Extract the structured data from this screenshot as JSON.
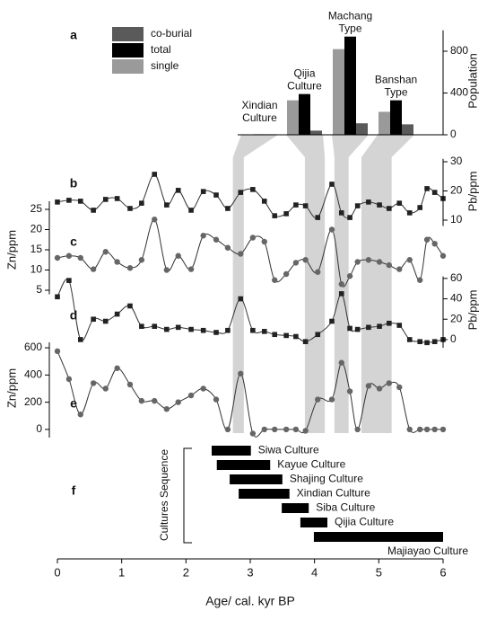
{
  "chart_data": [
    {
      "type": "bar",
      "label": "a",
      "ylabel": "Population",
      "categories": [
        "Xindian Culture",
        "Qijia Culture",
        "Machang Type",
        "Banshan Type"
      ],
      "age_ranges": [
        [
          2.73,
          2.9
        ],
        [
          3.85,
          4.16
        ],
        [
          4.31,
          4.53
        ],
        [
          4.73,
          5.2
        ]
      ],
      "series": [
        {
          "name": "co-burial",
          "color": "#5a5a5a",
          "values": [
            5,
            40,
            110,
            100
          ]
        },
        {
          "name": "total",
          "color": "#000000",
          "values": [
            5,
            390,
            940,
            330
          ]
        },
        {
          "name": "single",
          "color": "#9a9a9a",
          "values": [
            0,
            330,
            820,
            220
          ]
        }
      ],
      "ylim": [
        0,
        1000
      ],
      "yticks": [
        0,
        400,
        800
      ],
      "axis_side": "right",
      "legend": "top-left"
    },
    {
      "type": "line",
      "label": "b",
      "ylabel": "Pb/ppm",
      "marker": "square",
      "axis_side": "right",
      "x": [
        0,
        0.18,
        0.36,
        0.56,
        0.75,
        0.93,
        1.13,
        1.31,
        1.51,
        1.7,
        1.88,
        2.08,
        2.27,
        2.47,
        2.65,
        2.85,
        3.04,
        3.22,
        3.38,
        3.56,
        3.71,
        3.86,
        4.05,
        4.27,
        4.42,
        4.55,
        4.67,
        4.84,
        5.01,
        5.16,
        5.32,
        5.48,
        5.64,
        5.75,
        5.87,
        6
      ],
      "values": [
        16.2,
        16.8,
        16.5,
        13.4,
        17.1,
        17.4,
        14,
        15.8,
        25.7,
        15.2,
        20.2,
        13.4,
        19.8,
        18.6,
        14,
        19.5,
        20.5,
        16.5,
        11.5,
        12.2,
        15.2,
        14.9,
        10.9,
        22.3,
        12.5,
        10.9,
        14.9,
        16.2,
        15.2,
        14,
        15.8,
        12.5,
        14.3,
        20.8,
        19.5,
        17.4
      ],
      "ylim": [
        8,
        31
      ],
      "yticks": [
        10,
        20,
        30
      ]
    },
    {
      "type": "line",
      "label": "c",
      "ylabel": "Zn/ppm",
      "marker": "circle",
      "axis_side": "left",
      "x": [
        0,
        0.18,
        0.36,
        0.56,
        0.75,
        0.93,
        1.13,
        1.31,
        1.51,
        1.7,
        1.88,
        2.08,
        2.27,
        2.47,
        2.65,
        2.85,
        3.04,
        3.22,
        3.38,
        3.56,
        3.71,
        3.86,
        4.05,
        4.27,
        4.42,
        4.55,
        4.67,
        4.84,
        5.01,
        5.16,
        5.32,
        5.48,
        5.64,
        5.75,
        5.87,
        6
      ],
      "values": [
        13,
        13.5,
        13,
        10.2,
        14.5,
        12,
        10.5,
        12.5,
        22.5,
        10,
        13.5,
        10.2,
        18.5,
        17.5,
        15.5,
        14,
        18,
        17,
        7.5,
        9,
        11.8,
        12.5,
        9.5,
        20,
        6.5,
        8.5,
        12,
        12.5,
        12,
        11.2,
        10.2,
        12.5,
        7.5,
        17.5,
        16.5,
        13.5
      ],
      "ylim": [
        4,
        27
      ],
      "yticks": [
        5,
        10,
        15,
        20,
        25
      ]
    },
    {
      "type": "line",
      "label": "d",
      "ylabel": "Pb/ppm",
      "marker": "square",
      "axis_side": "right",
      "x": [
        0,
        0.18,
        0.36,
        0.56,
        0.75,
        0.93,
        1.13,
        1.31,
        1.51,
        1.7,
        1.88,
        2.08,
        2.27,
        2.47,
        2.65,
        2.85,
        3.04,
        3.22,
        3.38,
        3.56,
        3.71,
        3.86,
        4.05,
        4.27,
        4.42,
        4.55,
        4.67,
        4.84,
        5.01,
        5.16,
        5.32,
        5.48,
        5.64,
        5.75,
        5.87,
        6
      ],
      "values": [
        42,
        58,
        0,
        20,
        18,
        25,
        33,
        13,
        13,
        10,
        12,
        10,
        9,
        7,
        9,
        40,
        9,
        8,
        5,
        4,
        3,
        -2,
        5,
        18,
        45,
        11,
        10,
        12,
        13,
        16,
        14,
        0,
        -2,
        -3,
        -2,
        0
      ],
      "ylim": [
        -8,
        62
      ],
      "yticks": [
        0,
        20,
        40,
        60
      ]
    },
    {
      "type": "line",
      "label": "e",
      "ylabel": "Zn/ppm",
      "marker": "circle",
      "axis_side": "left",
      "x": [
        0,
        0.18,
        0.36,
        0.56,
        0.75,
        0.93,
        1.13,
        1.31,
        1.51,
        1.7,
        1.88,
        2.08,
        2.27,
        2.47,
        2.65,
        2.85,
        3.04,
        3.22,
        3.38,
        3.56,
        3.71,
        3.86,
        4.05,
        4.27,
        4.42,
        4.55,
        4.67,
        4.84,
        5.01,
        5.16,
        5.32,
        5.48,
        5.64,
        5.75,
        5.87,
        6
      ],
      "values": [
        575,
        370,
        110,
        340,
        300,
        450,
        330,
        210,
        210,
        150,
        200,
        250,
        300,
        220,
        0,
        410,
        -30,
        0,
        0,
        0,
        0,
        -10,
        220,
        220,
        490,
        280,
        0,
        320,
        300,
        340,
        310,
        0,
        0,
        0,
        0,
        0
      ],
      "ylim": [
        -60,
        640
      ],
      "yticks": [
        0,
        200,
        400,
        600
      ]
    },
    {
      "type": "range",
      "label": "f",
      "ylabel": "Cultures Sequence",
      "color": "#000000",
      "categories": [
        "Siwa Culture",
        "Kayue Culture",
        "Shajing Culture",
        "Xindian Culture",
        "Siba Culture",
        "Qijia Culture",
        "Majiayao Culture"
      ],
      "starts": [
        2.4,
        2.48,
        2.68,
        2.82,
        3.49,
        3.78,
        3.99
      ],
      "ends": [
        3.01,
        3.31,
        3.5,
        3.61,
        3.91,
        4.2,
        6
      ],
      "xlabel": "Age/ cal. kyr BP",
      "xlim": [
        0,
        6
      ],
      "xticks": [
        0,
        1,
        2,
        3,
        4,
        5,
        6
      ]
    }
  ]
}
